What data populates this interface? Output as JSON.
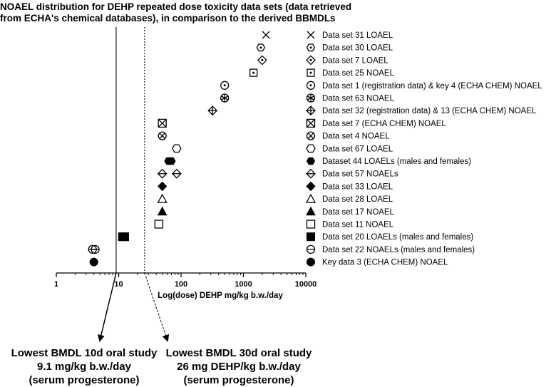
{
  "chart_data": {
    "type": "scatter",
    "title_lines": [
      "NOAEL distribution for DEHP repeated dose toxicity data sets (data retrieved",
      "from ECHA's chemical databases), in comparison to the derived BBMDLs"
    ],
    "xlabel": "Log(dose) DEHP mg/kg b.w./day",
    "xscale": "log",
    "xlim": [
      1,
      10000
    ],
    "x_ticks": [
      1,
      10,
      100,
      1000,
      10000
    ],
    "x_tick_labels": [
      "1",
      "10",
      "100",
      "1000",
      "10000"
    ],
    "legend_position": "right",
    "series": [
      {
        "name": "Data set 31 LOAEL",
        "marker": "x",
        "x": [
          2300
        ]
      },
      {
        "name": "Data set 30 LOAEL",
        "marker": "hex-dot",
        "x": [
          1900
        ]
      },
      {
        "name": "Data set 7 LOAEL",
        "marker": "diamond-dot",
        "x": [
          2000
        ]
      },
      {
        "name": "Data set 25 NOAEL",
        "marker": "square-dot",
        "x": [
          1450
        ]
      },
      {
        "name": "Data set 1 (registration data) & key 4 (ECHA CHEM) NOAEL",
        "marker": "circle-dot",
        "x": [
          500
        ]
      },
      {
        "name": "Data set 63  NOAEL",
        "marker": "circle-star",
        "x": [
          500
        ]
      },
      {
        "name": "Data set 32 (registration data) & 13  (ECHA CHEM) NOAEL",
        "marker": "diamond-plus",
        "x": [
          320
        ]
      },
      {
        "name": "Data set 7 (ECHA CHEM) NOAEL",
        "marker": "square-x",
        "x": [
          50
        ]
      },
      {
        "name": "Data set 4 NOAEL",
        "marker": "circle-x",
        "x": [
          50
        ]
      },
      {
        "name": "Data set 67 LOAEL",
        "marker": "hexagon",
        "x": [
          85
        ]
      },
      {
        "name": "Dataset 44 LOAELs (males and females)",
        "marker": "filled-hexagon",
        "x": [
          63,
          70
        ]
      },
      {
        "name": "Data set 57 NOAELs",
        "marker": "diamond-dash",
        "x": [
          50,
          85
        ]
      },
      {
        "name": "Data set 33 LOAEL",
        "marker": "filled-diamond",
        "x": [
          50
        ]
      },
      {
        "name": "Data set 28 LOAEL",
        "marker": "triangle",
        "x": [
          50
        ]
      },
      {
        "name": "Data set 17  NOAEL",
        "marker": "filled-triangle",
        "x": [
          50
        ]
      },
      {
        "name": "Data set 11 NOAEL",
        "marker": "square",
        "x": [
          44
        ]
      },
      {
        "name": "Data set 20  LOAELs (males and females)",
        "marker": "filled-square",
        "x": [
          11.5,
          12.5
        ]
      },
      {
        "name": "Data set 22 NOAELs (males and females)",
        "marker": "circle-dash",
        "x": [
          3.8,
          4.2
        ]
      },
      {
        "name": "Key data 3 (ECHA CHEM) NOAEL",
        "marker": "filled-circle",
        "x": [
          4
        ]
      }
    ],
    "reference_lines": [
      {
        "x": 9.1,
        "style": "solid",
        "label_lines": [
          "Lowest BMDL 10d oral study",
          "9.1 mg/kg b.w./day",
          "(serum progesterone)"
        ]
      },
      {
        "x": 26,
        "style": "dotted",
        "label_lines": [
          "Lowest BMDL 30d oral study",
          "26 mg  DEHP/kg b.w./day",
          "(serum progesterone)"
        ]
      }
    ]
  }
}
